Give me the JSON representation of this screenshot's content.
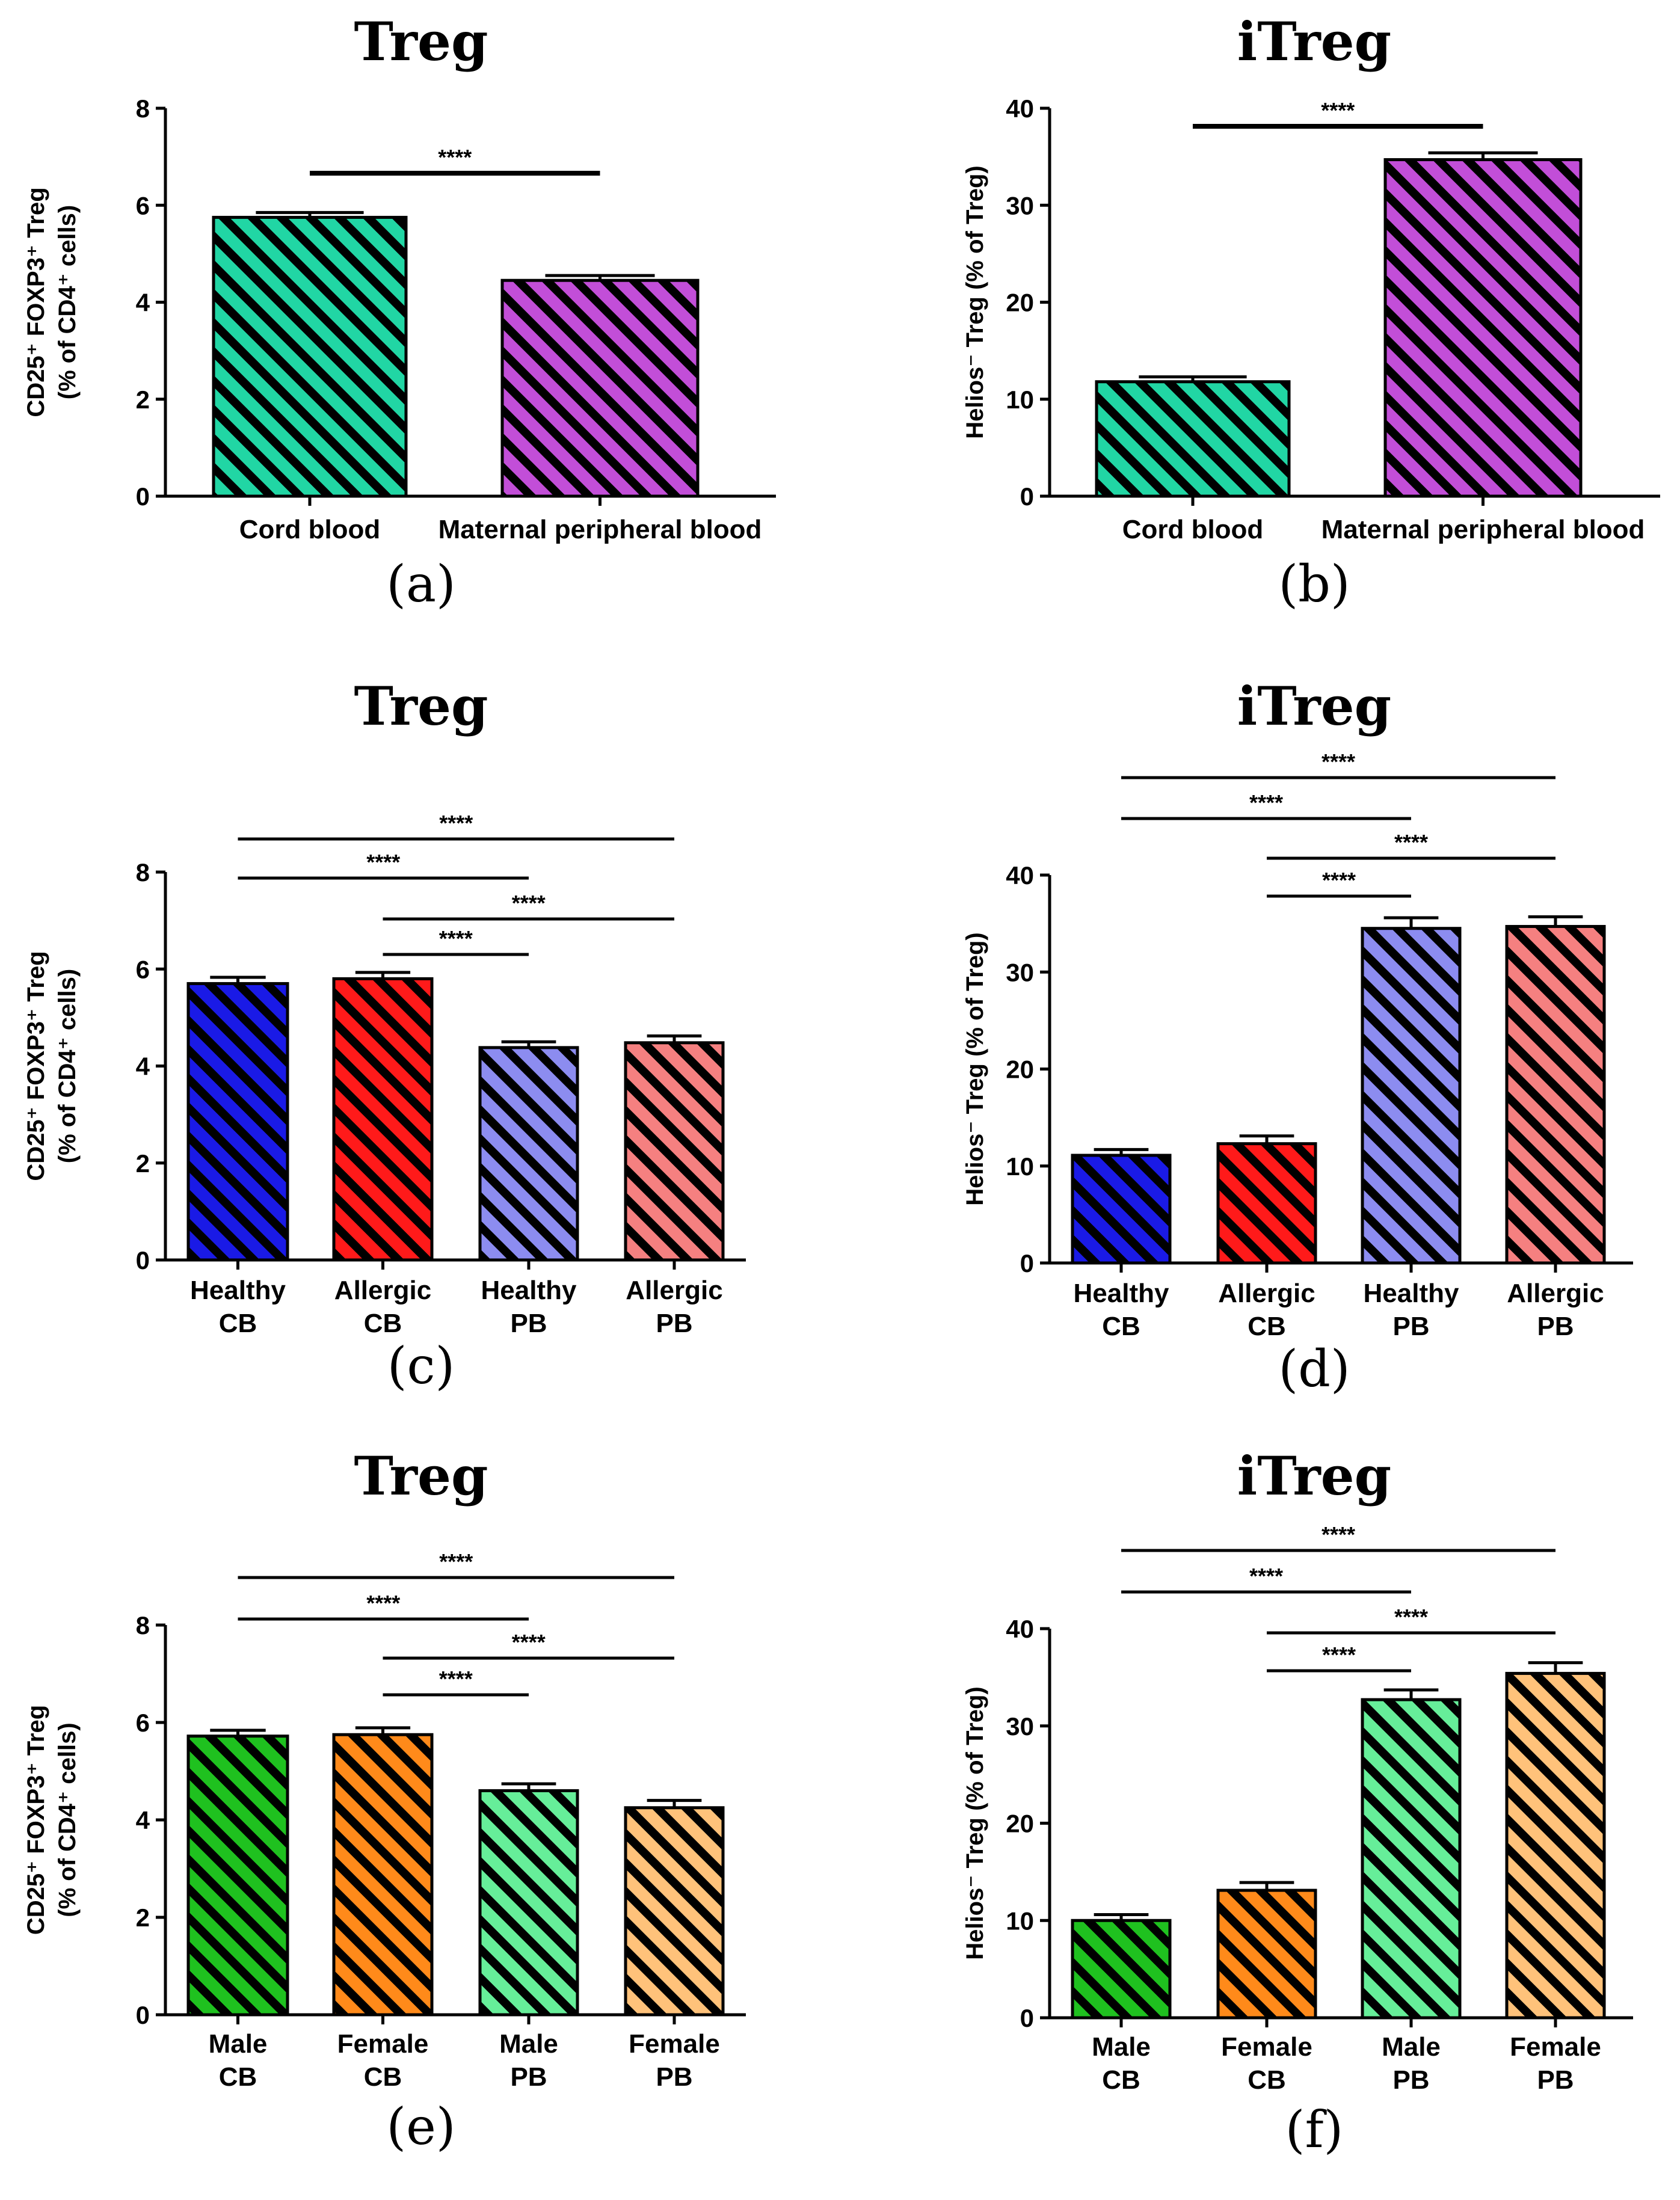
{
  "chart_data": [
    {
      "panel": "(a)",
      "type": "bar",
      "title": "Treg",
      "ylabel": [
        "CD25⁺ FOXP3⁺ Treg",
        "(% of CD4⁺ cells)"
      ],
      "ylim": [
        0,
        8
      ],
      "yticks": [
        0,
        2,
        4,
        6,
        8
      ],
      "categories": [
        [
          "Cord blood"
        ],
        [
          "Maternal peripheral blood"
        ]
      ],
      "values": [
        5.75,
        4.45
      ],
      "errors": [
        0.1,
        0.1
      ],
      "colors": [
        "#21d6a4",
        "#c24ed8"
      ],
      "significance": [
        {
          "from": 0,
          "to": 1,
          "label": "****"
        }
      ]
    },
    {
      "panel": "(b)",
      "type": "bar",
      "title": "iTreg",
      "ylabel": [
        "Helios⁻ Treg (% of Treg)"
      ],
      "ylim": [
        0,
        40
      ],
      "yticks": [
        0,
        10,
        20,
        30,
        40
      ],
      "categories": [
        [
          "Cord blood"
        ],
        [
          "Maternal peripheral blood"
        ]
      ],
      "values": [
        11.8,
        34.7
      ],
      "errors": [
        0.5,
        0.7
      ],
      "colors": [
        "#21d6a4",
        "#c24ed8"
      ],
      "significance": [
        {
          "from": 0,
          "to": 1,
          "label": "****"
        }
      ]
    },
    {
      "panel": "(c)",
      "type": "bar",
      "title": "Treg",
      "ylabel": [
        "CD25⁺ FOXP3⁺ Treg",
        "(% of CD4⁺ cells)"
      ],
      "ylim": [
        0,
        8
      ],
      "yticks": [
        0,
        2,
        4,
        6,
        8
      ],
      "categories": [
        [
          "Healthy",
          "CB"
        ],
        [
          "Allergic",
          "CB"
        ],
        [
          "Healthy",
          "PB"
        ],
        [
          "Allergic",
          "PB"
        ]
      ],
      "values": [
        5.7,
        5.8,
        4.38,
        4.48
      ],
      "errors": [
        0.13,
        0.13,
        0.12,
        0.14
      ],
      "colors": [
        "#1a1ae6",
        "#ff1a1a",
        "#8c8cf0",
        "#f58080"
      ],
      "significance": [
        {
          "from": 0,
          "to": 3,
          "label": "****"
        },
        {
          "from": 0,
          "to": 2,
          "label": "****"
        },
        {
          "from": 1,
          "to": 3,
          "label": "****"
        },
        {
          "from": 1,
          "to": 2,
          "label": "****"
        }
      ]
    },
    {
      "panel": "(d)",
      "type": "bar",
      "title": "iTreg",
      "ylabel": [
        "Helios⁻ Treg (% of Treg)"
      ],
      "ylim": [
        0,
        40
      ],
      "yticks": [
        0,
        10,
        20,
        30,
        40
      ],
      "categories": [
        [
          "Healthy",
          "CB"
        ],
        [
          "Allergic",
          "CB"
        ],
        [
          "Healthy",
          "PB"
        ],
        [
          "Allergic",
          "PB"
        ]
      ],
      "values": [
        11.1,
        12.3,
        34.5,
        34.7
      ],
      "errors": [
        0.6,
        0.8,
        1.1,
        1.0
      ],
      "colors": [
        "#1a1ae6",
        "#ff1a1a",
        "#8c8cf0",
        "#f58080"
      ],
      "significance": [
        {
          "from": 0,
          "to": 3,
          "label": "****"
        },
        {
          "from": 0,
          "to": 2,
          "label": "****"
        },
        {
          "from": 1,
          "to": 3,
          "label": "****"
        },
        {
          "from": 1,
          "to": 2,
          "label": "****"
        }
      ]
    },
    {
      "panel": "(e)",
      "type": "bar",
      "title": "Treg",
      "ylabel": [
        "CD25⁺ FOXP3⁺ Treg",
        "(% of CD4⁺ cells)"
      ],
      "ylim": [
        0,
        8
      ],
      "yticks": [
        0,
        2,
        4,
        6,
        8
      ],
      "categories": [
        [
          "Male",
          "CB"
        ],
        [
          "Female",
          "CB"
        ],
        [
          "Male",
          "PB"
        ],
        [
          "Female",
          "PB"
        ]
      ],
      "values": [
        5.72,
        5.75,
        4.6,
        4.25
      ],
      "errors": [
        0.12,
        0.14,
        0.14,
        0.15
      ],
      "colors": [
        "#1fc11f",
        "#ff8a1a",
        "#66ee99",
        "#ffc27a"
      ],
      "significance": [
        {
          "from": 0,
          "to": 3,
          "label": "****"
        },
        {
          "from": 0,
          "to": 2,
          "label": "****"
        },
        {
          "from": 1,
          "to": 3,
          "label": "****"
        },
        {
          "from": 1,
          "to": 2,
          "label": "****"
        }
      ]
    },
    {
      "panel": "(f)",
      "type": "bar",
      "title": "iTreg",
      "ylabel": [
        "Helios⁻ Treg (% of Treg)"
      ],
      "ylim": [
        0,
        40
      ],
      "yticks": [
        0,
        10,
        20,
        30,
        40
      ],
      "categories": [
        [
          "Male",
          "CB"
        ],
        [
          "Female",
          "CB"
        ],
        [
          "Male",
          "PB"
        ],
        [
          "Female",
          "PB"
        ]
      ],
      "values": [
        10.0,
        13.1,
        32.7,
        35.4
      ],
      "errors": [
        0.6,
        0.8,
        1.0,
        1.1
      ],
      "colors": [
        "#1fc11f",
        "#ff8a1a",
        "#66ee99",
        "#ffc27a"
      ],
      "significance": [
        {
          "from": 0,
          "to": 3,
          "label": "****"
        },
        {
          "from": 0,
          "to": 2,
          "label": "****"
        },
        {
          "from": 1,
          "to": 3,
          "label": "****"
        },
        {
          "from": 1,
          "to": 2,
          "label": "****"
        }
      ]
    }
  ]
}
